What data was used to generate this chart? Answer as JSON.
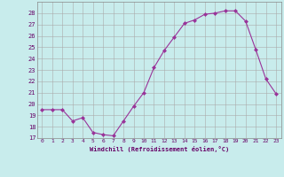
{
  "x": [
    0,
    1,
    2,
    3,
    4,
    5,
    6,
    7,
    8,
    9,
    10,
    11,
    12,
    13,
    14,
    15,
    16,
    17,
    18,
    19,
    20,
    21,
    22,
    23
  ],
  "y": [
    19.5,
    19.5,
    19.5,
    18.5,
    18.8,
    17.5,
    17.3,
    17.2,
    18.5,
    19.8,
    21.0,
    23.2,
    24.7,
    25.9,
    27.1,
    27.4,
    27.9,
    28.0,
    28.2,
    28.2,
    27.3,
    24.8,
    22.2,
    20.9
  ],
  "line_color": "#993399",
  "marker": "D",
  "marker_size": 2,
  "bg_color": "#c8ecec",
  "grid_color": "#aaaaaa",
  "xlabel": "Windchill (Refroidissement éolien,°C)",
  "xlabel_color": "#660066",
  "tick_color": "#660066",
  "ylim": [
    17,
    29
  ],
  "xlim": [
    -0.5,
    23.5
  ],
  "yticks": [
    17,
    18,
    19,
    20,
    21,
    22,
    23,
    24,
    25,
    26,
    27,
    28
  ],
  "xticks": [
    0,
    1,
    2,
    3,
    4,
    5,
    6,
    7,
    8,
    9,
    10,
    11,
    12,
    13,
    14,
    15,
    16,
    17,
    18,
    19,
    20,
    21,
    22,
    23
  ]
}
